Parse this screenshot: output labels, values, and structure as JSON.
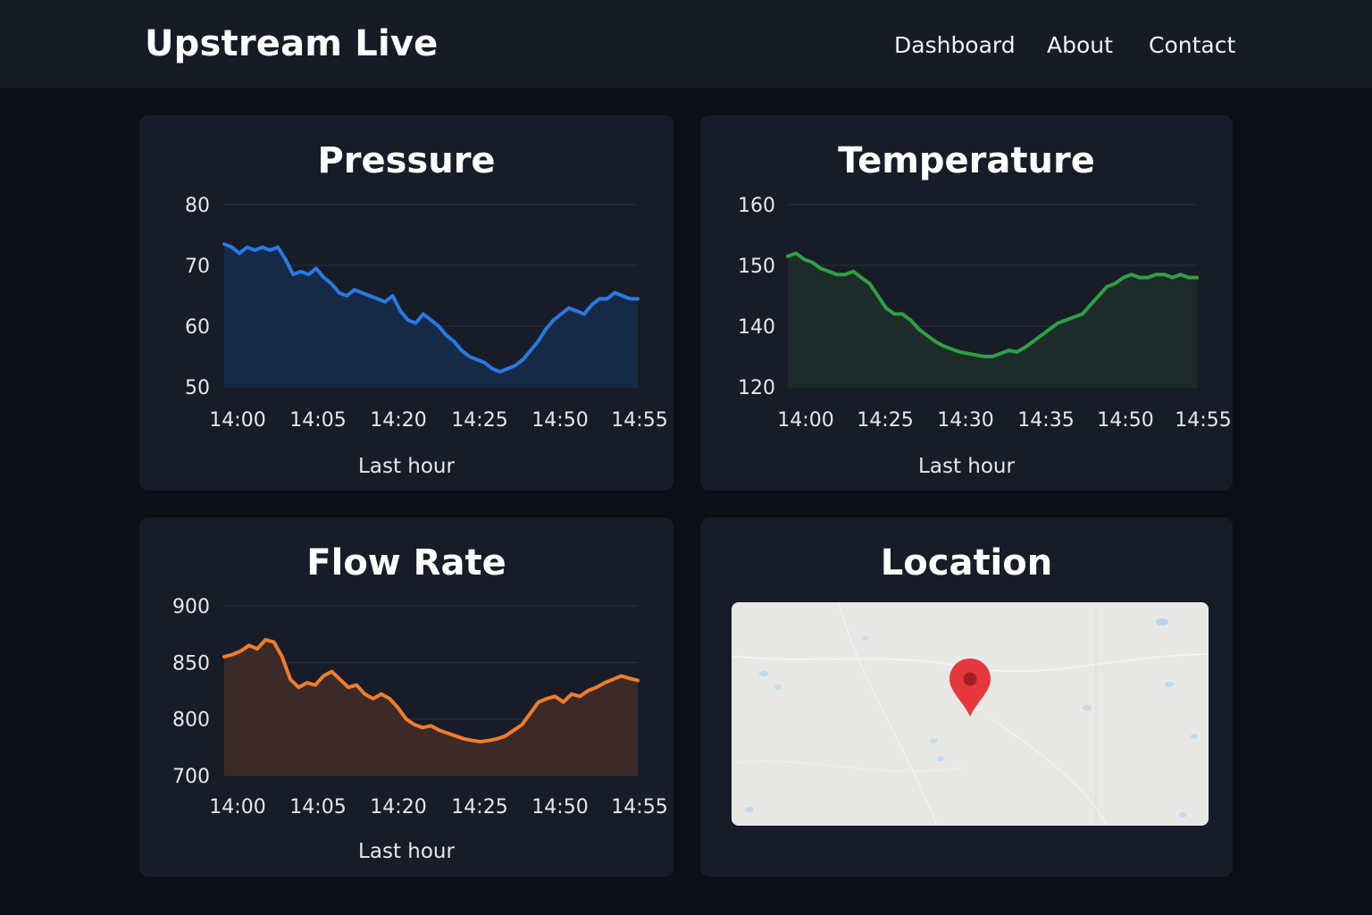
{
  "header": {
    "title": "Upstream Live",
    "nav": [
      {
        "label": "Dashboard"
      },
      {
        "label": "About"
      },
      {
        "label": "Contact"
      }
    ]
  },
  "cards": {
    "pressure": {
      "title": "Pressure"
    },
    "temperature": {
      "title": "Temperature"
    },
    "flow": {
      "title": "Flow Rate"
    },
    "location": {
      "title": "Location"
    }
  },
  "chart_data": [
    {
      "type": "area",
      "title": "Pressure",
      "xlabel": "Last hour",
      "x_tick_labels": [
        "14:00",
        "14:05",
        "14:20",
        "14:25",
        "14:50",
        "14:55"
      ],
      "y_ticks": [
        50,
        60,
        70,
        80
      ],
      "y_tick_labels": [
        "50",
        "60",
        "70",
        "80"
      ],
      "color": "#2979e0",
      "fill": "#162a48",
      "series": [
        {
          "values": [
            73.5,
            73,
            72,
            73,
            72.5,
            73,
            72.5,
            73,
            71,
            68.5,
            69,
            68.5,
            69.5,
            68,
            67,
            65.5,
            65,
            66,
            65.5,
            65,
            64.5,
            64,
            65,
            62.5,
            61,
            60.5,
            62,
            61,
            60,
            58.5,
            57.5,
            56,
            55,
            54.5,
            54,
            53,
            52.5,
            53,
            53.5,
            54.5,
            56,
            57.5,
            59.5,
            61,
            62,
            63,
            62.5,
            62,
            63.5,
            64.5,
            64.5,
            65.5,
            65,
            64.5,
            64.5
          ]
        }
      ]
    },
    {
      "type": "area",
      "title": "Temperature",
      "xlabel": "Last hour",
      "x_tick_labels": [
        "14:00",
        "14:25",
        "14:30",
        "14:35",
        "14:50",
        "14:55"
      ],
      "y_ticks": [
        120,
        140,
        150,
        160
      ],
      "y_tick_labels": [
        "120",
        "140",
        "150",
        "160"
      ],
      "color": "#2ea043",
      "fill": "#1d2b2a",
      "series": [
        {
          "values": [
            151.5,
            152,
            151,
            150.5,
            149.5,
            149,
            148.5,
            148.5,
            149,
            148,
            147,
            145,
            143,
            142,
            142,
            141,
            139,
            137,
            135,
            133.5,
            132.5,
            131.5,
            131,
            130.5,
            130,
            130,
            131,
            132,
            131.5,
            133,
            135,
            137,
            139,
            140.5,
            141,
            141.5,
            142,
            143.5,
            145,
            146.5,
            147,
            148,
            148.5,
            148,
            148,
            148.5,
            148.5,
            148,
            148.5,
            148,
            148
          ]
        }
      ]
    },
    {
      "type": "area",
      "title": "Flow Rate",
      "xlabel": "Last hour",
      "x_tick_labels": [
        "14:00",
        "14:05",
        "14:20",
        "14:25",
        "14:50",
        "14:55"
      ],
      "y_ticks": [
        700,
        800,
        850,
        900
      ],
      "y_tick_labels": [
        "700",
        "800",
        "850",
        "900"
      ],
      "color": "#f07c2a",
      "fill": "#3c2a28",
      "series": [
        {
          "values": [
            855,
            857,
            860,
            865,
            862,
            870,
            868,
            855,
            835,
            828,
            832,
            830,
            838,
            842,
            835,
            828,
            830,
            822,
            818,
            822,
            818,
            810,
            800,
            790,
            785,
            788,
            780,
            775,
            770,
            765,
            762,
            760,
            762,
            765,
            770,
            780,
            790,
            805,
            815,
            818,
            820,
            815,
            822,
            820,
            825,
            828,
            832,
            835,
            838,
            836,
            834
          ]
        }
      ]
    }
  ],
  "map": {
    "pin_color": "#e5373d"
  }
}
